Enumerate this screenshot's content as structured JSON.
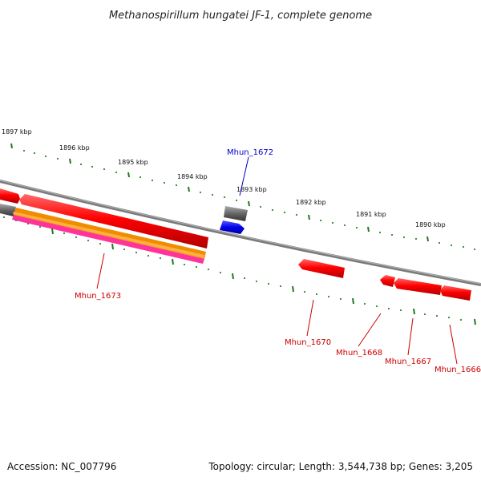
{
  "title": "Methanospirillum hungatei JF-1, complete genome",
  "footer": {
    "accession": "Accession: NC_007796",
    "topology": "Topology: circular; Length: 3,544,738 bp; Genes: 3,205"
  },
  "scale_labels": [
    "1897 kbp",
    "1896 kbp",
    "1895 kbp",
    "1894 kbp",
    "1893 kbp",
    "1892 kbp",
    "1891 kbp",
    "1890 kbp"
  ],
  "gene_labels": {
    "mhun_1672": "Mhun_1672",
    "mhun_1673": "Mhun_1673",
    "mhun_1670": "Mhun_1670",
    "mhun_1668": "Mhun_1668",
    "mhun_1667": "Mhun_1667",
    "mhun_1666": "Mhun_1666"
  },
  "colors": {
    "backbone": "#7a7a7a",
    "gene_red": "#ee0000",
    "rna_gray": "#666666",
    "forward_blue": "#0000ee",
    "label_blue": "#0000cc",
    "label_red": "#cc0000",
    "orange": "#f08c00",
    "magenta": "#ff3399",
    "tick_green": "#1e7a1e",
    "dot_green": "#2a8a2a"
  }
}
